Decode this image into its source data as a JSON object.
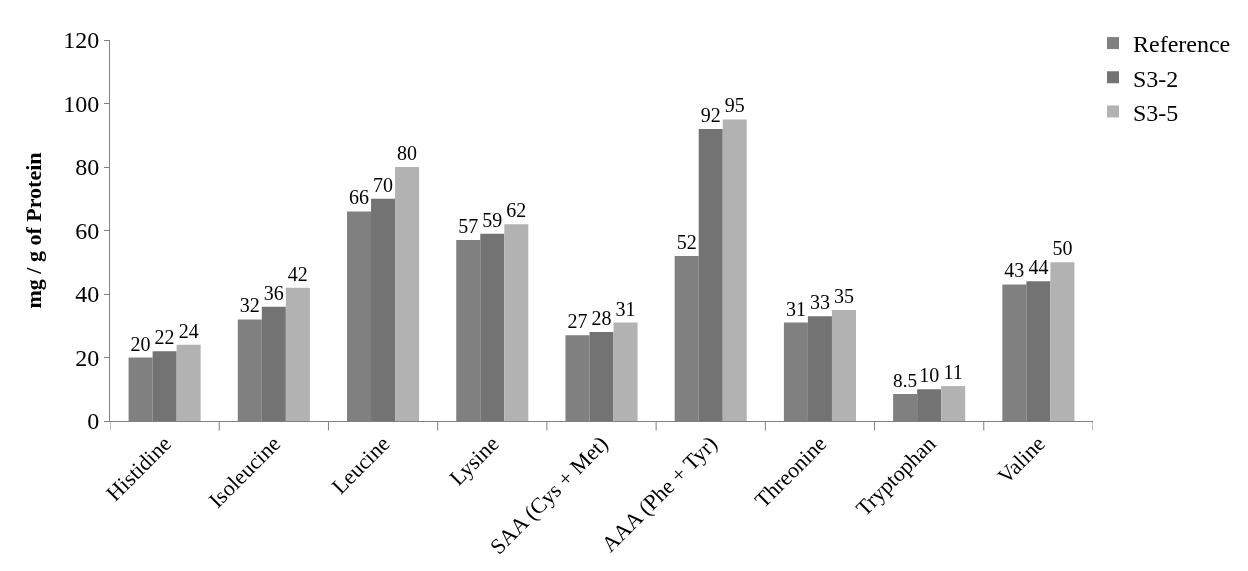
{
  "chart_data": {
    "type": "bar",
    "ylabel": "mg / g of Protein",
    "categories": [
      "Histidine",
      "Isoleucine",
      "Leucine",
      "Lysine",
      "SAA (Cys + Met)",
      "AAA (Phe + Tyr)",
      "Threonine",
      "Tryptophan",
      "Valine"
    ],
    "series": [
      {
        "name": "Reference",
        "color": "#808080",
        "values": [
          20,
          32,
          66,
          57,
          27,
          52,
          31,
          8.5,
          43
        ]
      },
      {
        "name": "S3-2",
        "color": "#737373",
        "values": [
          22,
          36,
          70,
          59,
          28,
          92,
          33,
          10,
          44
        ]
      },
      {
        "name": "S3-5",
        "color": "#b2b2b2",
        "values": [
          24,
          42,
          80,
          62,
          31,
          95,
          35,
          11,
          50
        ]
      }
    ],
    "ylim": [
      0,
      120
    ],
    "yticks": [
      0,
      20,
      40,
      60,
      80,
      100,
      120
    ],
    "data_labels": true,
    "legend": "top right"
  }
}
